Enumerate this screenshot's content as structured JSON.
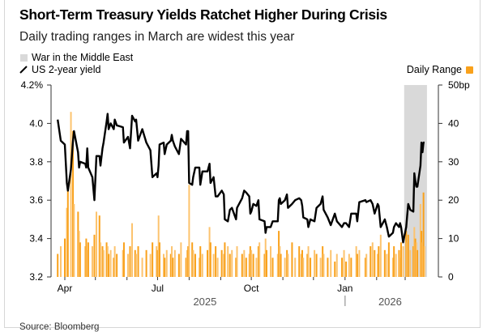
{
  "title": "Short-Term Treasury Yields Ratchet Higher During Crisis",
  "subtitle": "Daily trading ranges in March are widest this year",
  "source": "Source: Bloomberg",
  "chart_data": {
    "type": "line+bar",
    "legend": {
      "shaded": "War in the Middle East",
      "line": "US 2-year yield",
      "bars": "Daily Range",
      "placement": "top"
    },
    "colors": {
      "line": "#000000",
      "bars": "#f9a11b",
      "bars_light": "#fcc36e",
      "shaded": "#d9d9d9"
    },
    "shaded_period": [
      "2026-02-28",
      "2026-03-20"
    ],
    "left_axis": {
      "ylim": [
        3.2,
        4.2
      ],
      "ticks": [
        "4.2%",
        "4.0",
        "3.8",
        "3.6",
        "3.4",
        "3.2"
      ],
      "tick_values": [
        4.2,
        4.0,
        3.8,
        3.6,
        3.4,
        3.2
      ]
    },
    "right_axis": {
      "ylim": [
        0,
        50
      ],
      "ticks": [
        "50bp",
        "40",
        "30",
        "20",
        "10",
        "0"
      ],
      "tick_values": [
        50,
        40,
        30,
        20,
        10,
        0
      ]
    },
    "x_axis": {
      "month_labels": [
        {
          "label": "Apr",
          "date": "2025-04-01"
        },
        {
          "label": "Jul",
          "date": "2025-07-01"
        },
        {
          "label": "Oct",
          "date": "2025-10-01"
        },
        {
          "label": "Jan",
          "date": "2026-01-01"
        }
      ],
      "month_ticks": [
        "2025-04-01",
        "2025-05-01",
        "2025-06-01",
        "2025-07-01",
        "2025-08-01",
        "2025-09-01",
        "2025-10-01",
        "2025-11-01",
        "2025-12-01",
        "2026-01-01",
        "2026-02-01",
        "2026-03-01"
      ],
      "years": [
        {
          "label": "2025"
        },
        {
          "label": "2026"
        }
      ]
    },
    "grid": false,
    "dates": [
      "2025-03-25",
      "2025-03-28",
      "2025-04-01",
      "2025-04-03",
      "2025-04-04",
      "2025-04-07",
      "2025-04-09",
      "2025-04-10",
      "2025-04-14",
      "2025-04-15",
      "2025-04-16",
      "2025-04-21",
      "2025-04-22",
      "2025-04-23",
      "2025-04-24",
      "2025-04-28",
      "2025-04-30",
      "2025-05-02",
      "2025-05-05",
      "2025-05-06",
      "2025-05-08",
      "2025-05-09",
      "2025-05-12",
      "2025-05-13",
      "2025-05-14",
      "2025-05-16",
      "2025-05-19",
      "2025-05-20",
      "2025-05-22",
      "2025-05-28",
      "2025-05-29",
      "2025-06-02",
      "2025-06-04",
      "2025-06-06",
      "2025-06-09",
      "2025-06-10",
      "2025-06-12",
      "2025-06-16",
      "2025-06-20",
      "2025-06-24",
      "2025-06-26",
      "2025-06-30",
      "2025-07-01",
      "2025-07-02",
      "2025-07-03",
      "2025-07-07",
      "2025-07-08",
      "2025-07-10",
      "2025-07-14",
      "2025-07-15",
      "2025-07-16",
      "2025-07-18",
      "2025-07-22",
      "2025-07-24",
      "2025-07-29",
      "2025-07-30",
      "2025-07-31",
      "2025-08-01",
      "2025-08-04",
      "2025-08-05",
      "2025-08-07",
      "2025-08-11",
      "2025-08-12",
      "2025-08-14",
      "2025-08-19",
      "2025-08-21",
      "2025-08-22",
      "2025-08-25",
      "2025-08-27",
      "2025-08-29",
      "2025-09-02",
      "2025-09-04",
      "2025-09-05",
      "2025-09-08",
      "2025-09-10",
      "2025-09-12",
      "2025-09-16",
      "2025-09-17",
      "2025-09-22",
      "2025-09-24",
      "2025-09-26",
      "2025-09-29",
      "2025-09-30",
      "2025-10-01",
      "2025-10-03",
      "2025-10-06",
      "2025-10-08",
      "2025-10-09",
      "2025-10-14",
      "2025-10-15",
      "2025-10-16",
      "2025-10-20",
      "2025-10-22",
      "2025-10-27",
      "2025-10-28",
      "2025-10-29",
      "2025-10-30",
      "2025-11-03",
      "2025-11-05",
      "2025-11-06",
      "2025-11-10",
      "2025-11-13",
      "2025-11-17",
      "2025-11-19",
      "2025-11-20",
      "2025-11-21",
      "2025-11-25",
      "2025-11-26",
      "2025-11-28",
      "2025-12-02",
      "2025-12-04",
      "2025-12-08",
      "2025-12-10",
      "2025-12-11",
      "2025-12-15",
      "2025-12-18",
      "2025-12-22",
      "2025-12-24",
      "2025-12-29",
      "2025-12-31",
      "2026-01-02",
      "2026-01-05",
      "2026-01-07",
      "2026-01-12",
      "2026-01-13",
      "2026-01-15",
      "2026-01-21",
      "2026-01-22",
      "2026-01-26",
      "2026-01-28",
      "2026-01-30",
      "2026-02-02",
      "2026-02-03",
      "2026-02-05",
      "2026-02-09",
      "2026-02-11",
      "2026-02-13",
      "2026-02-17",
      "2026-02-18",
      "2026-02-20",
      "2026-02-23",
      "2026-02-24",
      "2026-02-25",
      "2026-02-27",
      "2026-03-02",
      "2026-03-03",
      "2026-03-04",
      "2026-03-06",
      "2026-03-09",
      "2026-03-10",
      "2026-03-11",
      "2026-03-12",
      "2026-03-13",
      "2026-03-16",
      "2026-03-17",
      "2026-03-18",
      "2026-03-19",
      "2026-03-20"
    ],
    "series": [
      {
        "name": "US 2-year yield",
        "type": "line",
        "axis": "left",
        "unit": "%",
        "values": [
          4.02,
          3.91,
          3.89,
          3.69,
          3.65,
          3.76,
          3.91,
          3.96,
          3.85,
          3.77,
          3.8,
          3.79,
          3.77,
          3.87,
          3.77,
          3.72,
          3.6,
          3.83,
          3.83,
          3.78,
          3.87,
          3.9,
          4.01,
          4.05,
          3.97,
          4.0,
          3.97,
          4.02,
          3.99,
          3.98,
          3.9,
          3.93,
          3.87,
          4.04,
          4.01,
          4.02,
          3.91,
          3.97,
          3.9,
          3.86,
          3.72,
          3.74,
          3.72,
          3.78,
          3.89,
          3.9,
          3.84,
          3.89,
          3.91,
          3.94,
          3.91,
          3.88,
          3.84,
          3.92,
          3.89,
          3.96,
          3.96,
          3.69,
          3.68,
          3.72,
          3.77,
          3.77,
          3.68,
          3.75,
          3.75,
          3.79,
          3.69,
          3.72,
          3.62,
          3.62,
          3.65,
          3.63,
          3.5,
          3.49,
          3.55,
          3.56,
          3.5,
          3.56,
          3.61,
          3.65,
          3.64,
          3.62,
          3.53,
          3.54,
          3.58,
          3.57,
          3.6,
          3.5,
          3.49,
          3.43,
          3.46,
          3.46,
          3.49,
          3.49,
          3.6,
          3.61,
          3.58,
          3.6,
          3.63,
          3.56,
          3.58,
          3.6,
          3.61,
          3.6,
          3.57,
          3.51,
          3.5,
          3.46,
          3.5,
          3.49,
          3.56,
          3.58,
          3.62,
          3.55,
          3.51,
          3.47,
          3.53,
          3.49,
          3.46,
          3.48,
          3.48,
          3.46,
          3.53,
          3.53,
          3.49,
          3.59,
          3.6,
          3.59,
          3.6,
          3.58,
          3.53,
          3.58,
          3.57,
          3.46,
          3.5,
          3.46,
          3.41,
          3.43,
          3.46,
          3.48,
          3.46,
          3.48,
          3.46,
          3.38,
          3.46,
          3.52,
          3.58,
          3.55,
          3.54,
          3.74,
          3.7,
          3.67,
          3.67,
          3.78,
          3.9,
          3.85,
          3.9,
          3.9
        ]
      },
      {
        "name": "Daily Range",
        "type": "bar",
        "axis": "right",
        "unit": "bp",
        "values": [
          6,
          8,
          10,
          18,
          23,
          43,
          38,
          19,
          17,
          12,
          9,
          8,
          10,
          7,
          9,
          8,
          11,
          17,
          16,
          9,
          8,
          7,
          9,
          8,
          6,
          7,
          5,
          8,
          6,
          7,
          9,
          6,
          8,
          14,
          7,
          6,
          8,
          5,
          7,
          6,
          9,
          8,
          7,
          16,
          9,
          6,
          5,
          7,
          6,
          8,
          5,
          7,
          6,
          9,
          5,
          7,
          8,
          24,
          9,
          7,
          6,
          5,
          8,
          6,
          7,
          13,
          9,
          6,
          8,
          5,
          7,
          6,
          9,
          8,
          6,
          7,
          5,
          8,
          6,
          7,
          5,
          6,
          8,
          7,
          6,
          5,
          8,
          9,
          6,
          10,
          7,
          8,
          5,
          6,
          12,
          8,
          6,
          5,
          7,
          6,
          9,
          5,
          8,
          6,
          7,
          5,
          6,
          8,
          5,
          7,
          6,
          5,
          8,
          6,
          5,
          7,
          4,
          6,
          5,
          7,
          4,
          6,
          5,
          8,
          6,
          7,
          5,
          6,
          8,
          9,
          7,
          6,
          8,
          11,
          7,
          6,
          9,
          5,
          8,
          6,
          7,
          5,
          9,
          8,
          12,
          9,
          11,
          7,
          8,
          13,
          10,
          9,
          7,
          19,
          12,
          9,
          22,
          8
        ]
      }
    ]
  }
}
